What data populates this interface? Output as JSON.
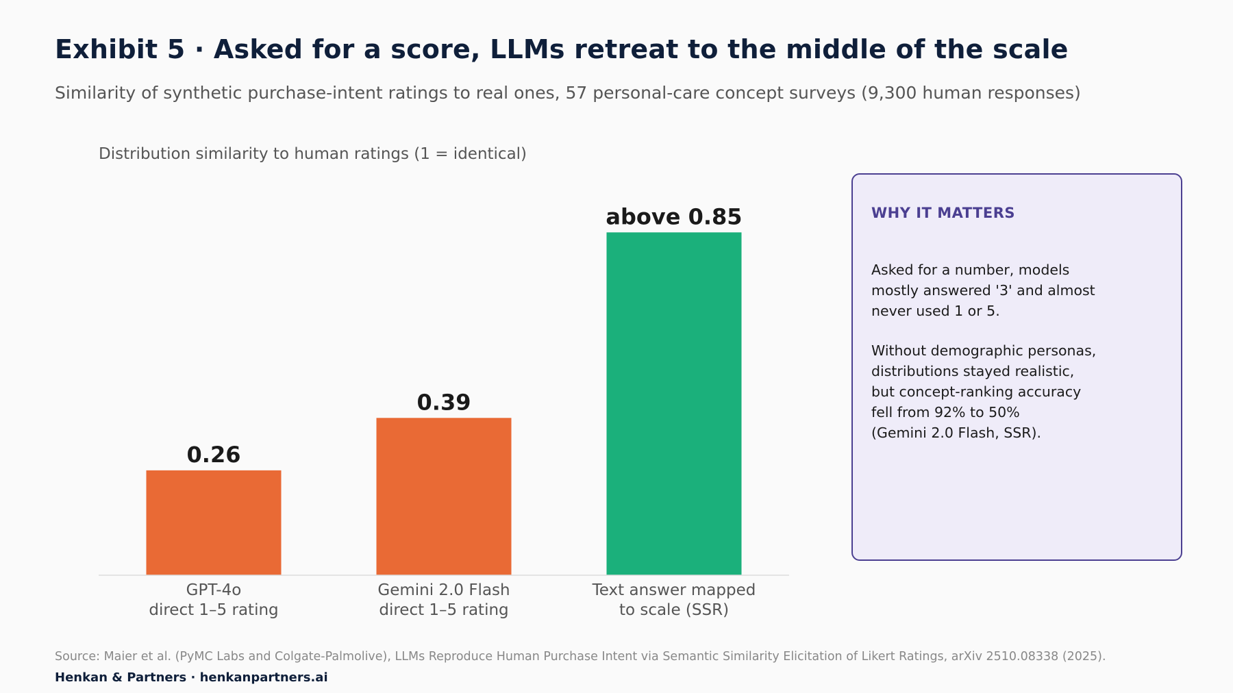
{
  "header": {
    "title": "Exhibit 5 · Asked for a score, LLMs retreat to the middle of the scale",
    "subtitle": "Similarity of synthetic purchase-intent ratings to real ones, 57 personal-care concept surveys (9,300 human responses)"
  },
  "chart_data": {
    "type": "bar",
    "ylabel": "Distribution similarity to human ratings (1 = identical)",
    "categories": [
      "GPT-4o\ndirect 1–5 rating",
      "Gemini 2.0 Flash\ndirect 1–5 rating",
      "Text answer mapped\nto scale (SSR)"
    ],
    "values": [
      0.26,
      0.39,
      0.85
    ],
    "data_labels": [
      "0.26",
      "0.39",
      "above 0.85"
    ],
    "colors": [
      "#e96a35",
      "#e96a35",
      "#1bb07b"
    ],
    "ylim": [
      0,
      1
    ],
    "grid": false,
    "legend": "none"
  },
  "callout": {
    "heading": "WHY IT MATTERS",
    "paragraph1": "Asked for a number, models\nmostly answered '3' and almost\nnever used 1 or 5.",
    "paragraph2": "Without demographic personas,\ndistributions stayed realistic,\nbut concept-ranking accuracy\nfell from 92% to 50%\n(Gemini 2.0 Flash, SSR).",
    "accent_color": "#4b3f91",
    "background_color": "#efecf9"
  },
  "footer": {
    "source": "Source: Maier et al. (PyMC Labs and Colgate-Palmolive), LLMs Reproduce Human Purchase Intent via Semantic Similarity Elicitation of Likert Ratings, arXiv 2510.08338 (2025).",
    "brand": "Henkan & Partners · henkanpartners.ai"
  }
}
